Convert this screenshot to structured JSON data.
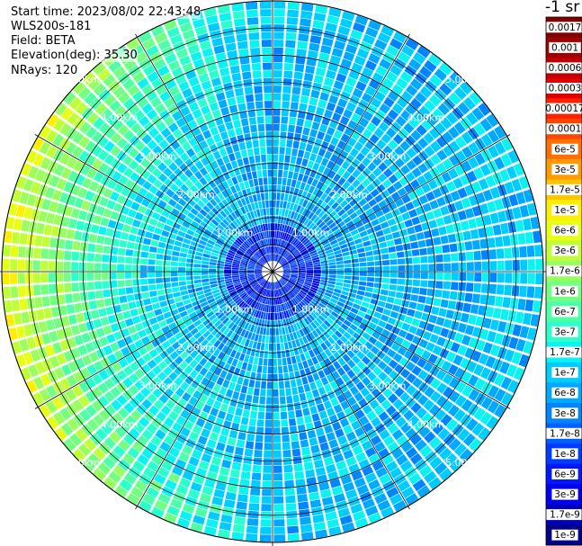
{
  "header": {
    "start_time": "Start time: 2023/08/02 22:43:48",
    "instrument": "WLS200s-181",
    "field": "Field: BETA",
    "elevation": "Elevation(deg): 35.30",
    "nrays": "NRays: 120"
  },
  "colorbar": {
    "title": "-1 sr",
    "labels": [
      "0.0017",
      "0.001",
      "0.0006",
      "0.0003",
      "0.00017",
      "0.0001",
      "6e-5",
      "3e-5",
      "1.7e-5",
      "1e-5",
      "6e-6",
      "3e-6",
      "1.7e-6",
      "1e-6",
      "6e-7",
      "3e-7",
      "1.7e-7",
      "1e-7",
      "6e-8",
      "3e-8",
      "1.7e-8",
      "1e-8",
      "6e-9",
      "3e-9",
      "1.7e-9",
      "1e-9"
    ],
    "colors": [
      "#800000",
      "#a00000",
      "#c00000",
      "#e00000",
      "#ff2000",
      "#ff4500",
      "#ff7000",
      "#ff9a00",
      "#ffc400",
      "#ffee00",
      "#e6ff15",
      "#c0ff38",
      "#9aff5e",
      "#74ff83",
      "#4effa8",
      "#2bffcd",
      "#0cf2f2",
      "#00ccff",
      "#00a8ff",
      "#0084ff",
      "#0060ff",
      "#003cff",
      "#0018ff",
      "#0000ee",
      "#0000bb",
      "#000088"
    ]
  },
  "chart_data": {
    "type": "heatmap",
    "projection": "polar (PPI scan)",
    "nrays": 120,
    "field": "BETA",
    "range_ring_labels": [
      "1.00km",
      "2.00km",
      "3.00km",
      "4.00km",
      "5.00km"
    ],
    "range_rings_km": [
      1,
      2,
      3,
      4,
      5
    ],
    "max_range_km": 5.0,
    "scale": "log",
    "value_range": [
      1e-09,
      0.0017
    ],
    "dominant_range": "1e-8 to 1.7e-7",
    "elevated_region": "western edge, ~1.7e-6 to 6e-6 beyond 4.5 km"
  }
}
